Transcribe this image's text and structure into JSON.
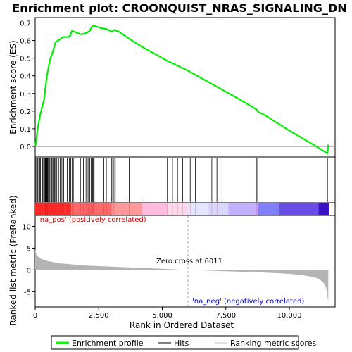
{
  "chart_data": {
    "type": "line",
    "title": "Enrichment plot: CROONQUIST_NRAS_SIGNALING_DN",
    "xlabel": "Rank in Ordered Dataset",
    "ylabel_top": "Enrichment score (ES)",
    "ylabel_bottom": "Ranked list metric (PreRanked)",
    "xlim": [
      0,
      11800
    ],
    "es_ylim": [
      -0.06,
      0.73
    ],
    "metric_ylim": [
      -8.5,
      12.5
    ],
    "x_ticks": [
      0,
      2500,
      5000,
      7500,
      10000
    ],
    "x_tick_labels": [
      "0",
      "2,500",
      "5,000",
      "7,500",
      "10,000"
    ],
    "es_ticks": [
      0.0,
      0.1,
      0.2,
      0.3,
      0.4,
      0.5,
      0.6,
      0.7
    ],
    "es_tick_labels": [
      "0.0",
      "0.1",
      "0.2",
      "0.3",
      "0.4",
      "0.5",
      "0.6",
      "0.7"
    ],
    "metric_ticks": [
      -5,
      0,
      5,
      10
    ],
    "metric_tick_labels": [
      "-5",
      "0",
      "5",
      "10"
    ],
    "zero_cross_label": "Zero cross at 6011",
    "zero_cross_rank": 6011,
    "pos_label": "'na_pos' (positively correlated)",
    "neg_label": "'na_neg' (negatively correlated)",
    "legend": [
      {
        "label": "Enrichment profile",
        "color": "#00ff00"
      },
      {
        "label": "Hits",
        "color": "#000000"
      },
      {
        "label": "Ranking metric scores",
        "color": "#c0c0c0"
      }
    ],
    "colors": {
      "es_line": "#00ff00",
      "metric_fill": "#b4b4b4",
      "zero_line": "#808080",
      "pos_text": "#cc0000",
      "neg_text": "#0000cc"
    },
    "es_profile": [
      [
        0,
        0.0
      ],
      [
        40,
        0.03
      ],
      [
        80,
        0.08
      ],
      [
        120,
        0.12
      ],
      [
        160,
        0.15
      ],
      [
        200,
        0.18
      ],
      [
        250,
        0.21
      ],
      [
        300,
        0.24
      ],
      [
        350,
        0.26
      ],
      [
        380,
        0.3
      ],
      [
        400,
        0.33
      ],
      [
        430,
        0.36
      ],
      [
        460,
        0.4
      ],
      [
        500,
        0.43
      ],
      [
        540,
        0.46
      ],
      [
        580,
        0.49
      ],
      [
        630,
        0.51
      ],
      [
        680,
        0.53
      ],
      [
        720,
        0.55
      ],
      [
        760,
        0.57
      ],
      [
        800,
        0.59
      ],
      [
        900,
        0.6
      ],
      [
        1000,
        0.61
      ],
      [
        1100,
        0.62
      ],
      [
        1200,
        0.62
      ],
      [
        1300,
        0.62
      ],
      [
        1380,
        0.63
      ],
      [
        1450,
        0.655
      ],
      [
        1550,
        0.65
      ],
      [
        1700,
        0.64
      ],
      [
        1800,
        0.635
      ],
      [
        1950,
        0.64
      ],
      [
        2050,
        0.645
      ],
      [
        2150,
        0.655
      ],
      [
        2200,
        0.67
      ],
      [
        2280,
        0.685
      ],
      [
        2400,
        0.68
      ],
      [
        2600,
        0.67
      ],
      [
        2800,
        0.665
      ],
      [
        2950,
        0.655
      ],
      [
        3000,
        0.65
      ],
      [
        3100,
        0.66
      ],
      [
        3300,
        0.65
      ],
      [
        3700,
        0.61
      ],
      [
        4200,
        0.565
      ],
      [
        5200,
        0.485
      ],
      [
        6000,
        0.43
      ],
      [
        7000,
        0.35
      ],
      [
        8000,
        0.27
      ],
      [
        8700,
        0.21
      ],
      [
        8780,
        0.195
      ],
      [
        9000,
        0.18
      ],
      [
        10000,
        0.09
      ],
      [
        11000,
        0.005
      ],
      [
        11500,
        -0.04
      ],
      [
        11530,
        0.01
      ]
    ],
    "hits": [
      30,
      70,
      100,
      140,
      180,
      210,
      260,
      290,
      330,
      360,
      390,
      410,
      430,
      450,
      470,
      490,
      520,
      550,
      580,
      620,
      650,
      690,
      720,
      760,
      800,
      850,
      920,
      980,
      1050,
      1120,
      1180,
      1260,
      1340,
      1400,
      1450,
      1500,
      1780,
      1900,
      2000,
      2080,
      2150,
      2200,
      2230,
      2260,
      2290,
      2320,
      2700,
      2800,
      3000,
      3050,
      3100,
      3150,
      3700,
      4200,
      5200,
      5400,
      5600,
      5800,
      6100,
      6300,
      6950,
      7150,
      7350,
      8720,
      8760,
      11500
    ],
    "metric_curve": [
      [
        0,
        4.8
      ],
      [
        15,
        4.2
      ],
      [
        50,
        3.5
      ],
      [
        120,
        3.0
      ],
      [
        250,
        2.5
      ],
      [
        500,
        2.0
      ],
      [
        1000,
        1.5
      ],
      [
        2000,
        1.0
      ],
      [
        3000,
        0.75
      ],
      [
        4000,
        0.5
      ],
      [
        5000,
        0.25
      ],
      [
        6011,
        0.0
      ],
      [
        7000,
        -0.2
      ],
      [
        8000,
        -0.4
      ],
      [
        9000,
        -0.6
      ],
      [
        10000,
        -0.9
      ],
      [
        10500,
        -1.2
      ],
      [
        11000,
        -1.7
      ],
      [
        11200,
        -2.2
      ],
      [
        11350,
        -3.0
      ],
      [
        11450,
        -4.2
      ],
      [
        11500,
        -6.0
      ],
      [
        11530,
        -7.6
      ]
    ],
    "ranking_bar": [
      {
        "start": 0,
        "end": 1400,
        "color": "#ff3030"
      },
      {
        "start": 1400,
        "end": 3000,
        "color": "#ff6b6b"
      },
      {
        "start": 3000,
        "end": 4200,
        "color": "#ff9999"
      },
      {
        "start": 4200,
        "end": 5200,
        "color": "#ffbbdd"
      },
      {
        "start": 5200,
        "end": 6000,
        "color": "#ffd8ee"
      },
      {
        "start": 6000,
        "end": 6800,
        "color": "#e5e5ff"
      },
      {
        "start": 6800,
        "end": 7600,
        "color": "#d8d8ff"
      },
      {
        "start": 7600,
        "end": 8750,
        "color": "#c0b0ff"
      },
      {
        "start": 8750,
        "end": 9600,
        "color": "#8080ff"
      },
      {
        "start": 9600,
        "end": 11150,
        "color": "#6a4de6"
      },
      {
        "start": 11150,
        "end": 11550,
        "color": "#3a10c8"
      }
    ]
  }
}
